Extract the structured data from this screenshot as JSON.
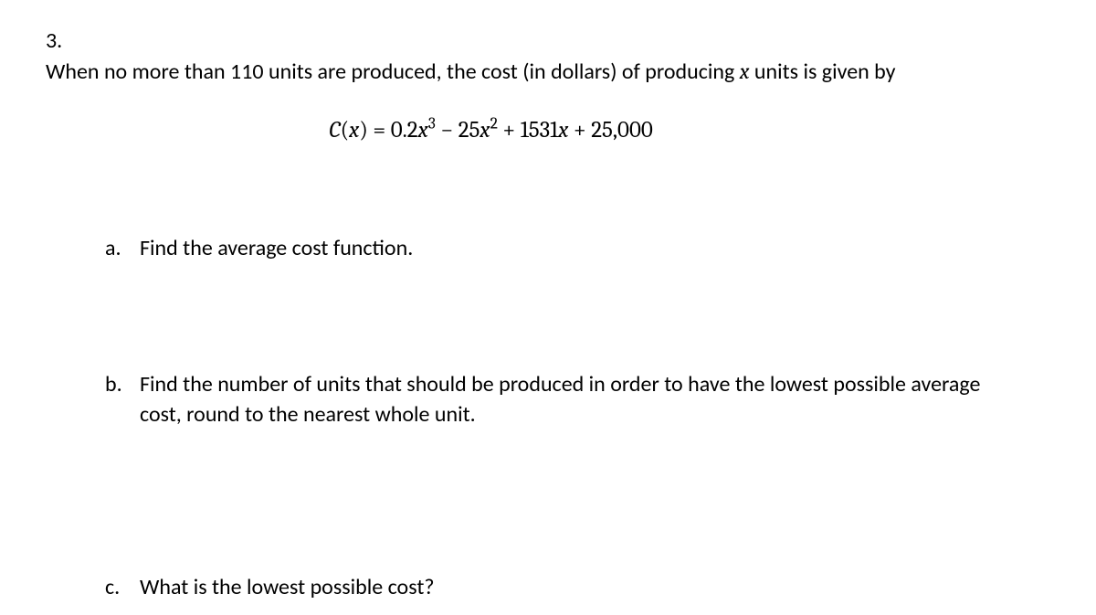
{
  "problem": {
    "number": "3.",
    "intro_part1": "When no more than 110 units are produced, the cost (in dollars) of producing ",
    "intro_var": "x",
    "intro_part2": " units is given by",
    "equation": {
      "lhs_func": "C",
      "lhs_var": "x",
      "eq": " = ",
      "term1_coef": "0.2",
      "term1_var": "x",
      "term1_exp": "3",
      "minus": " − ",
      "term2_coef": "25",
      "term2_var": "x",
      "term2_exp": "2",
      "plus1": " + ",
      "term3_coef": "1531",
      "term3_var": "x",
      "plus2": " + ",
      "term4": "25,000"
    },
    "subparts": {
      "a": {
        "letter": "a.",
        "text": "Find the average cost function."
      },
      "b": {
        "letter": "b.",
        "text": "Find the number of units that should be produced in order to have the lowest possible average cost, round to the nearest whole unit."
      },
      "c": {
        "letter": "c.",
        "text": "What is the lowest possible cost?"
      }
    }
  }
}
